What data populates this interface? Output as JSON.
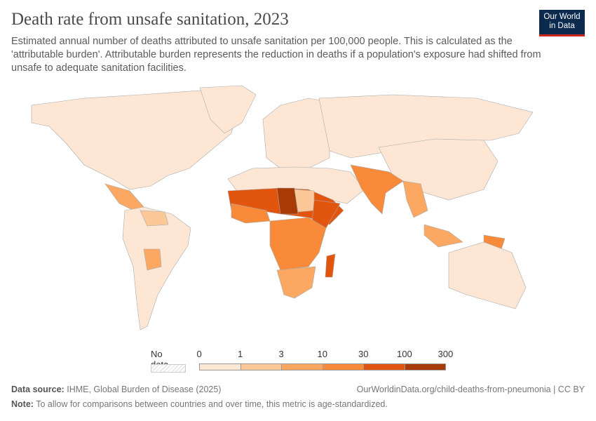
{
  "header": {
    "title": "Death rate from unsafe sanitation, 2023",
    "subtitle": "Estimated annual number of deaths attributed to unsafe sanitation per 100,000 people. This is calculated as the 'attributable burden'. Attributable burden represents the reduction in deaths if a population's exposure had shifted from unsafe to adequate sanitation facilities.",
    "logo_line1": "Our World",
    "logo_line2": "in Data"
  },
  "chart_data": {
    "type": "map",
    "year": "2023",
    "legend": {
      "no_data_label": "No data",
      "ticks": [
        "0",
        "1",
        "3",
        "10",
        "30",
        "100",
        "300"
      ],
      "bins": [
        {
          "range": [
            0,
            1
          ],
          "color": "#fde7d4"
        },
        {
          "range": [
            1,
            3
          ],
          "color": "#fdc897"
        },
        {
          "range": [
            3,
            10
          ],
          "color": "#fca863"
        },
        {
          "range": [
            10,
            30
          ],
          "color": "#f88a3a"
        },
        {
          "range": [
            30,
            100
          ],
          "color": "#e2550f"
        },
        {
          "range": [
            100,
            300
          ],
          "color": "#a83a06"
        }
      ]
    },
    "regions": [
      {
        "name": "North America",
        "bin": "0–1"
      },
      {
        "name": "Central America",
        "bin": "3–10"
      },
      {
        "name": "South America",
        "bin": "0–1"
      },
      {
        "name": "Bolivia",
        "bin": "3–10"
      },
      {
        "name": "Venezuela",
        "bin": "1–3"
      },
      {
        "name": "Europe",
        "bin": "0–1"
      },
      {
        "name": "Russia & Central Asia",
        "bin": "0–1"
      },
      {
        "name": "North Africa & Middle East",
        "bin": "0–1"
      },
      {
        "name": "Sahel",
        "bin": "30–100"
      },
      {
        "name": "Chad",
        "bin": "100–300"
      },
      {
        "name": "Sudan",
        "bin": "1–3"
      },
      {
        "name": "West Africa",
        "bin": "10–30"
      },
      {
        "name": "Horn of Africa",
        "bin": "30–100"
      },
      {
        "name": "Central & East Africa",
        "bin": "10–30"
      },
      {
        "name": "Southern Africa",
        "bin": "3–10"
      },
      {
        "name": "Madagascar",
        "bin": "30–100"
      },
      {
        "name": "South Asia",
        "bin": "10–30"
      },
      {
        "name": "Southeast Asia",
        "bin": "3–10"
      },
      {
        "name": "China & East Asia",
        "bin": "0–1"
      },
      {
        "name": "Papua New Guinea",
        "bin": "10–30"
      },
      {
        "name": "Australia",
        "bin": "0–1"
      }
    ]
  },
  "footer": {
    "source_label": "Data source:",
    "source": "IHME, Global Burden of Disease (2025)",
    "url": "OurWorldinData.org/child-deaths-from-pneumonia | CC BY",
    "note_label": "Note:",
    "note": "To allow for comparisons between countries and over time, this metric is age-standardized."
  }
}
